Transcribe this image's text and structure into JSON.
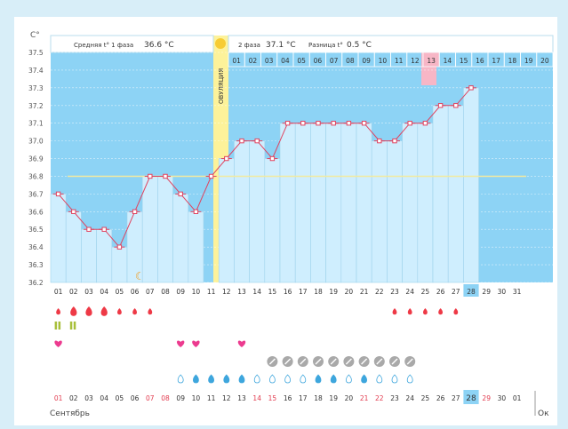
{
  "header": {
    "axis_unit": "C°",
    "phase1_label": "Средняя t° 1 фаза",
    "phase1_value": "36.6 °C",
    "phase2_label": "2 фаза",
    "phase2_value": "37.1 °C",
    "diff_label": "Разница t°",
    "diff_value": "0.5 °C",
    "ovulation_label": "ОВУЛЯЦИЯ"
  },
  "colors": {
    "blue_area": "#8dd3f5",
    "grid_blue": "#cfe9f8",
    "column_fill": "#cfeefe",
    "ovulation": "#fdf29a",
    "highlight_pink": "#f7b6c6",
    "line": "#e0435f",
    "coverline": "#f2eaa0",
    "today": "#8dd3f5"
  },
  "phase2_days": [
    "01",
    "02",
    "03",
    "04",
    "05",
    "06",
    "07",
    "08",
    "09",
    "10",
    "11",
    "12",
    "13",
    "14",
    "15",
    "16",
    "17",
    "18",
    "19",
    "20"
  ],
  "highlighted_phase2_day": "13",
  "chart_data": {
    "type": "line",
    "title": "",
    "ylabel": "C°",
    "ylim": [
      36.2,
      37.5
    ],
    "y_ticks": [
      "37.5",
      "37.4",
      "37.3",
      "37.2",
      "37.1",
      "37.0",
      "36.9",
      "36.8",
      "36.7",
      "36.6",
      "36.5",
      "36.4",
      "36.3",
      "36.2"
    ],
    "x": [
      "01",
      "02",
      "03",
      "04",
      "05",
      "06",
      "07",
      "08",
      "09",
      "10",
      "11",
      "12",
      "13",
      "14",
      "15",
      "16",
      "17",
      "18",
      "19",
      "20",
      "21",
      "22",
      "23",
      "24",
      "25",
      "26",
      "27",
      "28",
      "29",
      "30",
      "31"
    ],
    "series": [
      {
        "values": [
          36.7,
          36.6,
          36.5,
          36.5,
          36.4,
          36.6,
          36.8,
          36.8,
          36.7,
          36.6,
          36.8,
          36.9,
          37.0,
          37.0,
          36.9,
          37.1,
          37.1,
          37.1,
          37.1,
          37.1,
          37.1,
          37.0,
          37.0,
          37.1,
          37.1,
          37.2,
          37.2,
          37.3,
          null,
          null,
          null
        ]
      }
    ],
    "coverline": 36.8,
    "ovulation_day": "11",
    "today": "28"
  },
  "markers": {
    "bleeding": [
      {
        "day": 1,
        "size": "s"
      },
      {
        "day": 2,
        "size": "l"
      },
      {
        "day": 3,
        "size": "l"
      },
      {
        "day": 4,
        "size": "l"
      },
      {
        "day": 5,
        "size": "s"
      },
      {
        "day": 6,
        "size": "s"
      },
      {
        "day": 7,
        "size": "s"
      },
      {
        "day": 23,
        "size": "s"
      },
      {
        "day": 24,
        "size": "s"
      },
      {
        "day": 25,
        "size": "s"
      },
      {
        "day": 26,
        "size": "s"
      },
      {
        "day": 27,
        "size": "s"
      }
    ],
    "pills": [
      1,
      2
    ],
    "hearts": [
      1,
      9,
      10,
      13
    ],
    "slash_circles": [
      15,
      16,
      17,
      18,
      19,
      20,
      21,
      22,
      23,
      24
    ],
    "drops": [
      {
        "day": 9,
        "filled": false
      },
      {
        "day": 10,
        "filled": true
      },
      {
        "day": 11,
        "filled": true
      },
      {
        "day": 12,
        "filled": true
      },
      {
        "day": 13,
        "filled": true
      },
      {
        "day": 14,
        "filled": false
      },
      {
        "day": 15,
        "filled": false
      },
      {
        "day": 16,
        "filled": false
      },
      {
        "day": 17,
        "filled": false
      },
      {
        "day": 18,
        "filled": true
      },
      {
        "day": 19,
        "filled": true
      },
      {
        "day": 20,
        "filled": false
      },
      {
        "day": 21,
        "filled": true
      },
      {
        "day": 22,
        "filled": false
      },
      {
        "day": 23,
        "filled": false
      },
      {
        "day": 24,
        "filled": false
      }
    ],
    "moon_day": 6
  },
  "calendar": {
    "days": [
      "01",
      "02",
      "03",
      "04",
      "05",
      "06",
      "07",
      "08",
      "09",
      "10",
      "11",
      "12",
      "13",
      "14",
      "15",
      "16",
      "17",
      "18",
      "19",
      "20",
      "21",
      "22",
      "23",
      "24",
      "25",
      "26",
      "27",
      "28",
      "29",
      "30",
      "01"
    ],
    "weekend_days": [
      1,
      7,
      8,
      14,
      15,
      21,
      22,
      29
    ],
    "month_label": "Сентябрь",
    "next_month_label": "Ок"
  }
}
